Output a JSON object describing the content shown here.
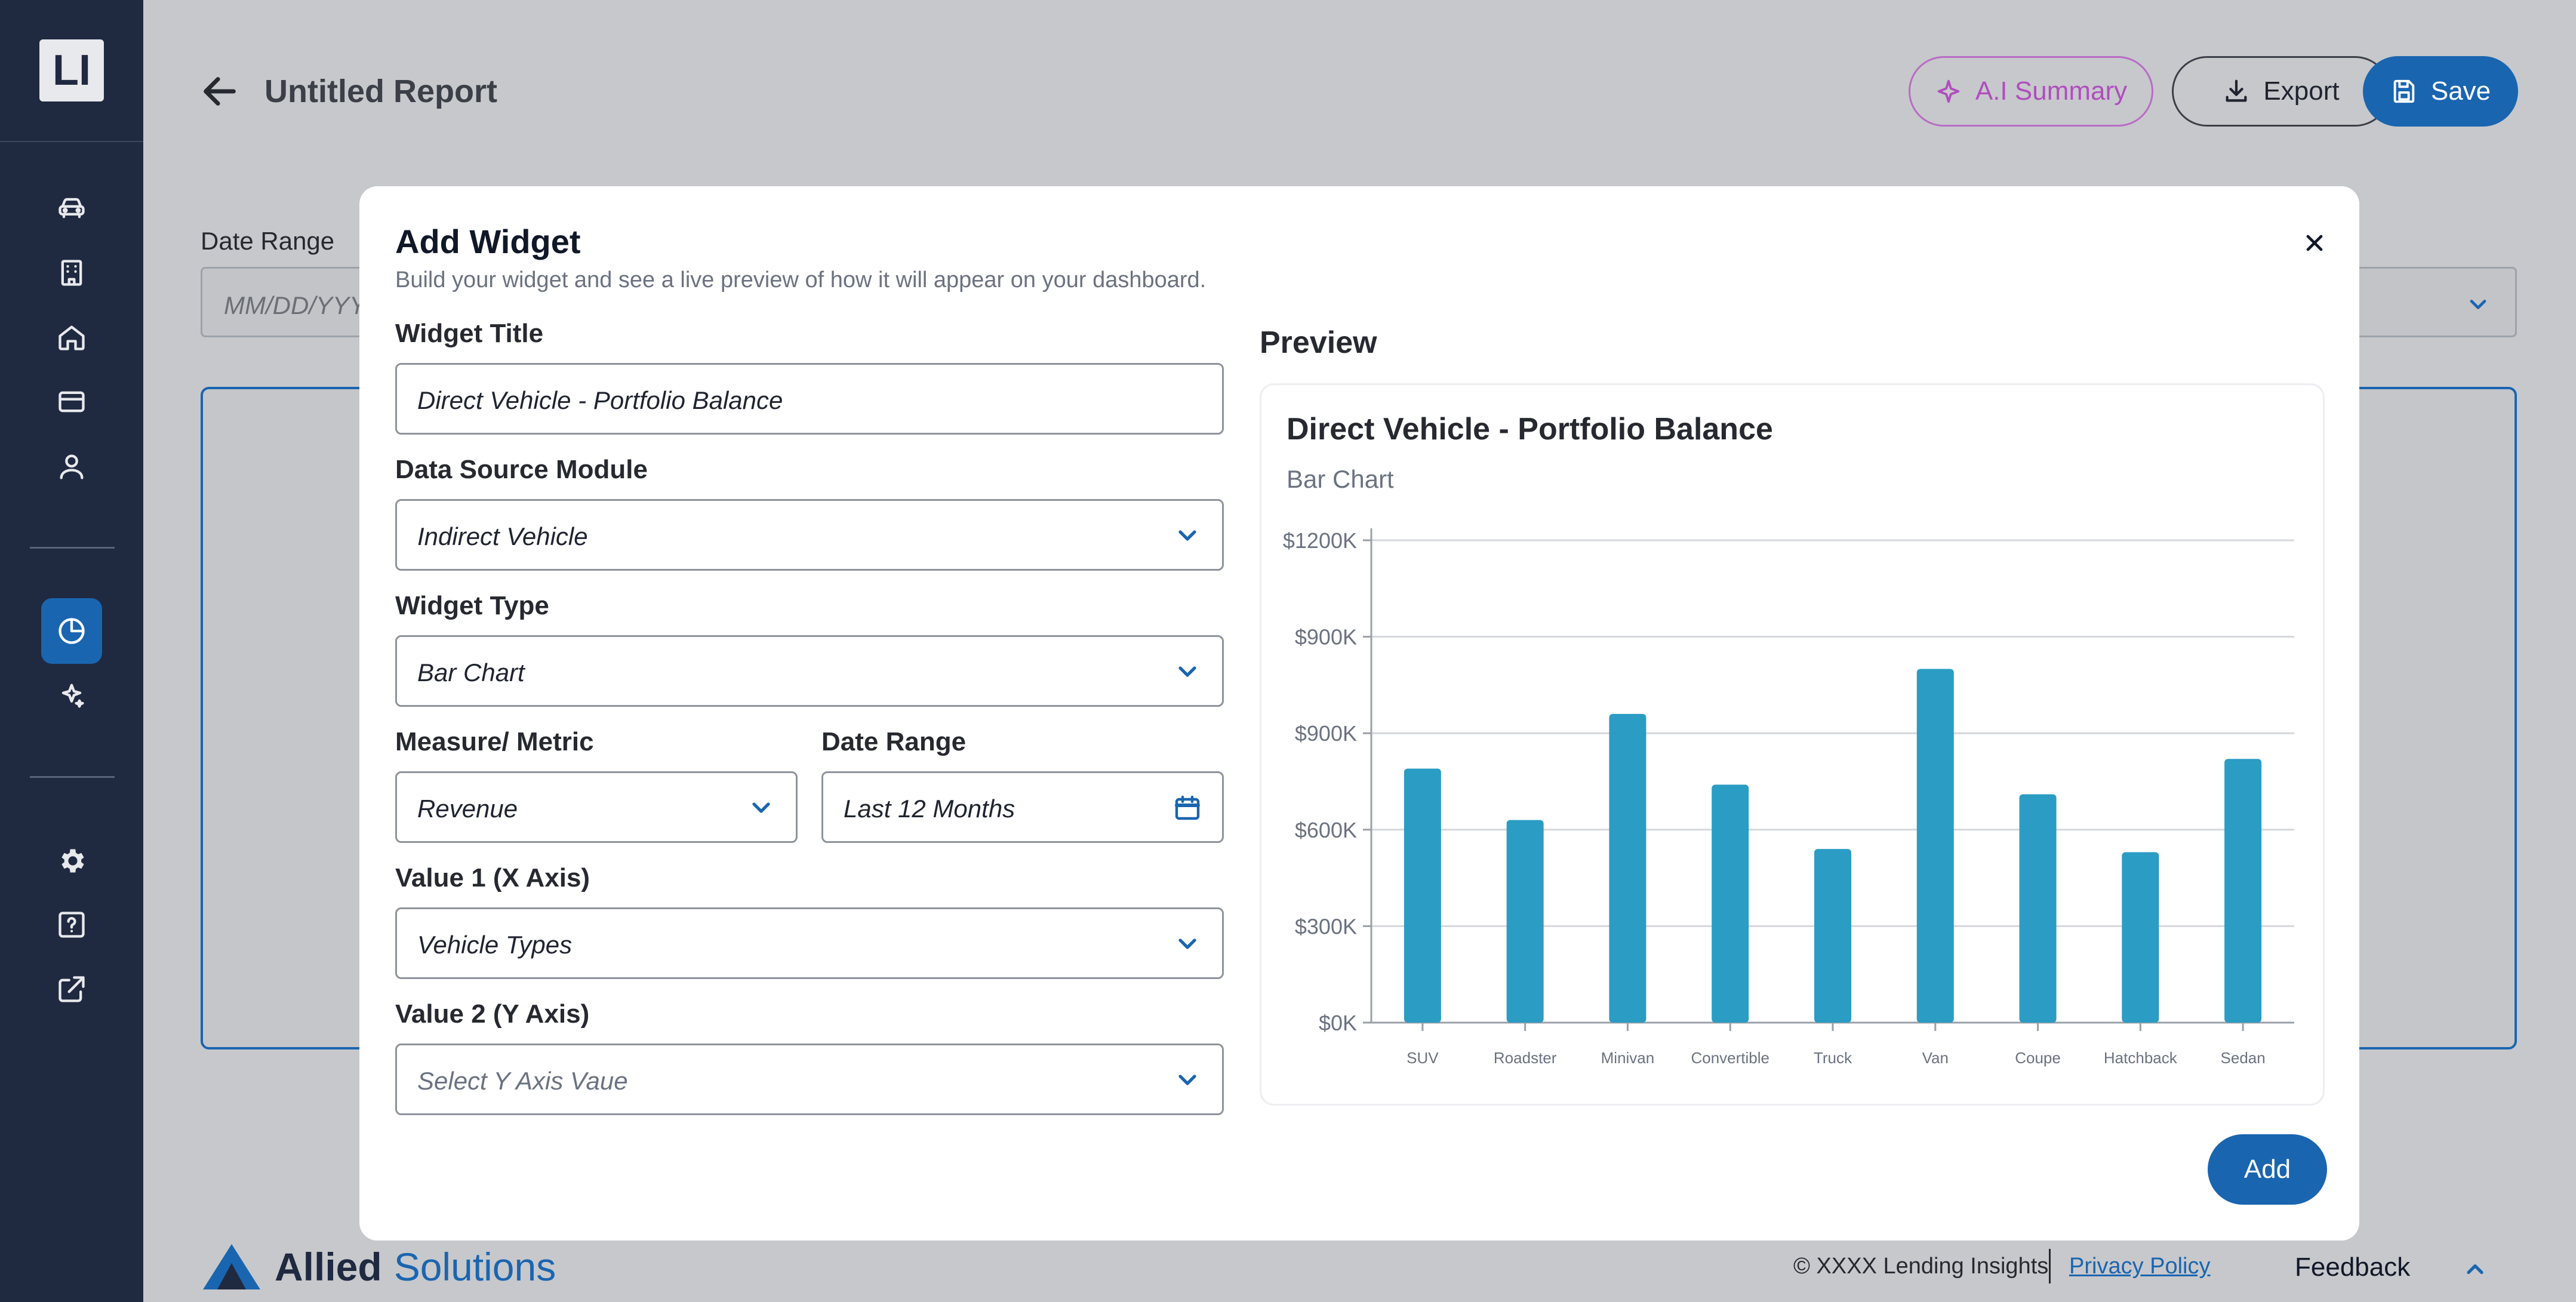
{
  "sidebar": {
    "logo_text": "LI",
    "nav_icons": [
      "car-icon",
      "building-icon",
      "home-icon",
      "credit-card-icon",
      "user-icon"
    ],
    "mid_icons": [
      "pie-chart-icon",
      "sparkles-icon"
    ],
    "bottom_icons": [
      "gear-icon",
      "help-icon",
      "external-link-icon"
    ],
    "active_item": "pie-chart-icon"
  },
  "header": {
    "title": "Untitled Report",
    "ai_summary_label": "A.I Summary",
    "export_label": "Export",
    "save_label": "Save"
  },
  "background": {
    "date_range_label": "Date Range",
    "date_range_placeholder": "MM/DD/YYY"
  },
  "footer": {
    "brand_part1": "Allied",
    "brand_part2": "Solutions",
    "copyright": "© XXXX Lending Insights",
    "privacy_label": "Privacy Policy",
    "feedback_label": "Feedback"
  },
  "modal": {
    "title": "Add Widget",
    "subtitle": "Build your widget and see a live preview of how it will appear on your dashboard.",
    "widget_title_label": "Widget Title",
    "widget_title_value": "Direct Vehicle - Portfolio Balance",
    "data_source_label": "Data Source Module",
    "data_source_value": "Indirect Vehicle",
    "widget_type_label": "Widget Type",
    "widget_type_value": "Bar Chart",
    "measure_label": "Measure/ Metric",
    "measure_value": "Revenue",
    "date_range_label": "Date Range",
    "date_range_value": "Last 12 Months",
    "x_axis_label": "Value 1 (X Axis)",
    "x_axis_value": "Vehicle Types",
    "y_axis_label": "Value 2 (Y Axis)",
    "y_axis_placeholder": "Select Y Axis Vaue",
    "preview_label": "Preview",
    "preview_title": "Direct Vehicle - Portfolio Balance",
    "preview_type": "Bar Chart",
    "add_label": "Add"
  },
  "colors": {
    "sidebar_bg": "#1f2940",
    "accent": "#1a65b0",
    "bar": "#2b9cc4",
    "ai_purple": "#b04dbf"
  },
  "chart_data": {
    "type": "bar",
    "title": "Direct Vehicle - Portfolio Balance",
    "subtitle": "Bar Chart",
    "categories": [
      "SUV",
      "Roadster",
      "Minivan",
      "Convertible",
      "Truck",
      "Van",
      "Coupe",
      "Hatchback",
      "Sedan"
    ],
    "values": [
      790,
      630,
      960,
      740,
      540,
      1100,
      710,
      530,
      820
    ],
    "y_tick_labels": [
      "$0K",
      "$300K",
      "$600K",
      "$900K",
      "$900K",
      "$1200K"
    ],
    "ylim": [
      0,
      1500
    ],
    "grid": true
  }
}
